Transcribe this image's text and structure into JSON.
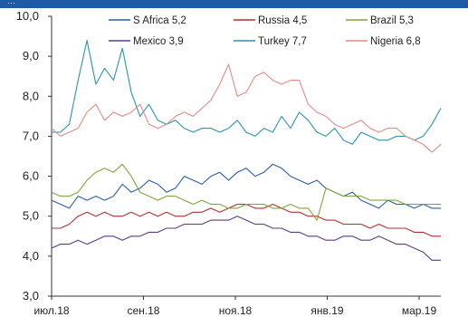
{
  "header": {
    "banner_text": "…"
  },
  "chart_data": {
    "type": "line",
    "yticks": [
      "10,0",
      "9,0",
      "8,0",
      "7,0",
      "6,0",
      "5,0",
      "4,0",
      "3,0"
    ],
    "ylim": [
      3.0,
      10.0
    ],
    "xticks": [
      "июл.18",
      "сен.18",
      "ноя.18",
      "янв.19",
      "мар.19"
    ],
    "grid": false,
    "legend_position": "top",
    "series": [
      {
        "name": "S Africa",
        "label": "S Africa 5,2",
        "color": "#2a5ea8",
        "last": 5.2,
        "values": [
          5.4,
          5.3,
          5.2,
          5.5,
          5.4,
          5.5,
          5.4,
          5.5,
          5.8,
          5.6,
          5.7,
          5.9,
          5.8,
          5.6,
          5.7,
          6.0,
          5.9,
          5.8,
          6.0,
          6.1,
          5.9,
          6.1,
          6.2,
          6.0,
          6.1,
          6.3,
          6.2,
          6.0,
          5.9,
          5.8,
          5.9,
          5.7,
          5.6,
          5.5,
          5.6,
          5.4,
          5.3,
          5.2,
          5.4,
          5.3,
          5.3,
          5.2,
          5.3,
          5.2,
          5.2
        ]
      },
      {
        "name": "Russia",
        "label": "Russia 4,5",
        "color": "#b3302f",
        "last": 4.5,
        "values": [
          4.7,
          4.7,
          4.8,
          5.0,
          5.1,
          5.0,
          5.1,
          5.0,
          5.0,
          5.1,
          5.0,
          5.1,
          5.0,
          5.1,
          5.0,
          5.0,
          5.1,
          5.1,
          5.2,
          5.1,
          5.2,
          5.3,
          5.3,
          5.2,
          5.2,
          5.3,
          5.2,
          5.1,
          5.1,
          5.0,
          5.0,
          4.9,
          4.9,
          4.8,
          4.8,
          4.8,
          4.7,
          4.8,
          4.7,
          4.7,
          4.7,
          4.6,
          4.6,
          4.5,
          4.5
        ]
      },
      {
        "name": "Brazil",
        "label": "Brazil 5,3",
        "color": "#7ea63a",
        "last": 5.3,
        "values": [
          5.6,
          5.5,
          5.5,
          5.6,
          5.9,
          6.1,
          6.2,
          6.1,
          6.3,
          6.0,
          5.6,
          5.5,
          5.4,
          5.5,
          5.5,
          5.4,
          5.3,
          5.4,
          5.3,
          5.3,
          5.2,
          5.2,
          5.3,
          5.3,
          5.3,
          5.2,
          5.2,
          5.3,
          5.2,
          5.2,
          4.9,
          5.7,
          5.6,
          5.5,
          5.5,
          5.5,
          5.4,
          5.4,
          5.4,
          5.4,
          5.3,
          5.3,
          5.3,
          5.3,
          5.3
        ]
      },
      {
        "name": "Mexico",
        "label": "Mexico 3,9",
        "color": "#5b3b8c",
        "last": 3.9,
        "values": [
          4.2,
          4.3,
          4.3,
          4.4,
          4.3,
          4.4,
          4.5,
          4.5,
          4.4,
          4.5,
          4.5,
          4.6,
          4.6,
          4.7,
          4.7,
          4.8,
          4.8,
          4.8,
          4.9,
          4.9,
          4.9,
          5.0,
          4.9,
          4.8,
          4.8,
          4.7,
          4.7,
          4.6,
          4.6,
          4.5,
          4.5,
          4.4,
          4.4,
          4.5,
          4.5,
          4.4,
          4.4,
          4.5,
          4.4,
          4.3,
          4.3,
          4.2,
          4.1,
          3.9,
          3.9
        ]
      },
      {
        "name": "Turkey",
        "label": "Turkey 7,7",
        "color": "#2a93b0",
        "last": 7.7,
        "values": [
          7.1,
          7.1,
          7.3,
          8.4,
          9.4,
          8.3,
          8.7,
          8.4,
          9.2,
          8.1,
          7.5,
          7.8,
          7.4,
          7.3,
          7.4,
          7.2,
          7.1,
          7.2,
          7.2,
          7.1,
          7.2,
          7.4,
          7.1,
          7.0,
          7.2,
          7.1,
          7.5,
          7.2,
          7.6,
          7.4,
          7.1,
          7.0,
          7.2,
          6.9,
          6.8,
          7.1,
          7.0,
          6.9,
          6.9,
          7.0,
          7.0,
          6.9,
          7.0,
          7.3,
          7.7
        ]
      },
      {
        "name": "Nigeria",
        "label": "Nigeria 6,8",
        "color": "#e58a85",
        "last": 6.8,
        "values": [
          7.2,
          7.0,
          7.1,
          7.2,
          7.6,
          7.8,
          7.4,
          7.6,
          7.5,
          7.6,
          7.8,
          7.3,
          7.2,
          7.3,
          7.5,
          7.6,
          7.5,
          7.7,
          7.9,
          8.3,
          8.8,
          8.0,
          8.1,
          8.5,
          8.6,
          8.4,
          8.3,
          8.4,
          8.4,
          7.8,
          7.6,
          7.5,
          7.3,
          7.2,
          7.3,
          7.4,
          7.2,
          7.1,
          7.2,
          7.2,
          7.0,
          6.9,
          6.8,
          6.6,
          6.8
        ]
      }
    ]
  }
}
